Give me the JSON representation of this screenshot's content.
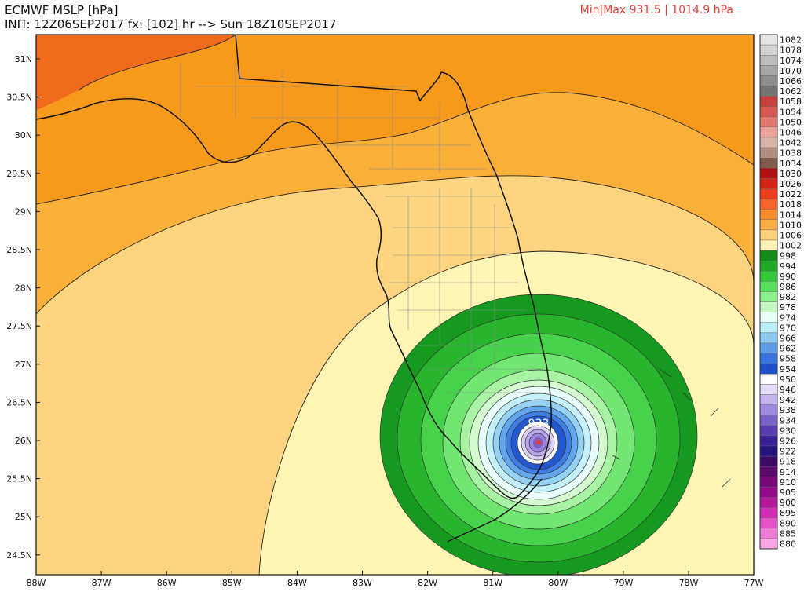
{
  "header": {
    "title": "ECMWF MSLP [hPa]",
    "init_line": "INIT: 12Z06SEP2017 fx: [102] hr --> Sun 18Z10SEP2017",
    "minmax": "Min|Max 931.5 | 1014.9 hPa",
    "center_label": "933"
  },
  "lat_labels": [
    "31N",
    "30.5N",
    "30N",
    "29.5N",
    "29N",
    "28.5N",
    "28N",
    "27.5N",
    "27N",
    "26.5N",
    "26N",
    "25.5N",
    "25N",
    "24.5N"
  ],
  "lon_labels": [
    "88W",
    "87W",
    "86W",
    "85W",
    "84W",
    "83W",
    "82W",
    "81W",
    "80W",
    "79W",
    "78W",
    "77W"
  ],
  "colorbar": [
    {
      "label": "1082",
      "color": "#e6e6e6"
    },
    {
      "label": "1078",
      "color": "#d2d2d2"
    },
    {
      "label": "1074",
      "color": "#bdbdbd"
    },
    {
      "label": "1070",
      "color": "#a6a6a6"
    },
    {
      "label": "1066",
      "color": "#8e8e8e"
    },
    {
      "label": "1062",
      "color": "#757575"
    },
    {
      "label": "1058",
      "color": "#c8403c"
    },
    {
      "label": "1054",
      "color": "#d85a55"
    },
    {
      "label": "1050",
      "color": "#e07870"
    },
    {
      "label": "1046",
      "color": "#eaa29b"
    },
    {
      "label": "1042",
      "color": "#d9b3a7"
    },
    {
      "label": "1038",
      "color": "#b08d7f"
    },
    {
      "label": "1034",
      "color": "#805a4b"
    },
    {
      "label": "1030",
      "color": "#b01010"
    },
    {
      "label": "1026",
      "color": "#d42418"
    },
    {
      "label": "1022",
      "color": "#f03c1e"
    },
    {
      "label": "1018",
      "color": "#f7642a"
    },
    {
      "label": "1014",
      "color": "#fa8c2a"
    },
    {
      "label": "1010",
      "color": "#fbae45"
    },
    {
      "label": "1006",
      "color": "#fdd27a"
    },
    {
      "label": "1002",
      "color": "#fff4b8"
    },
    {
      "label": "998",
      "color": "#128c1a"
    },
    {
      "label": "994",
      "color": "#1fab26"
    },
    {
      "label": "990",
      "color": "#34c83a"
    },
    {
      "label": "986",
      "color": "#58e05c"
    },
    {
      "label": "982",
      "color": "#8cf08c"
    },
    {
      "label": "978",
      "color": "#c6f9c2"
    },
    {
      "label": "974",
      "color": "#e6fff8"
    },
    {
      "label": "970",
      "color": "#bceef8"
    },
    {
      "label": "966",
      "color": "#8cc8f0"
    },
    {
      "label": "962",
      "color": "#5c9ce8"
    },
    {
      "label": "958",
      "color": "#3a74e0"
    },
    {
      "label": "954",
      "color": "#1e50c8"
    },
    {
      "label": "950",
      "color": "#ffffff"
    },
    {
      "label": "946",
      "color": "#e6dcf8"
    },
    {
      "label": "942",
      "color": "#c6b4f0"
    },
    {
      "label": "938",
      "color": "#9f8ae0"
    },
    {
      "label": "934",
      "color": "#7a62c8"
    },
    {
      "label": "930",
      "color": "#5c3cb0"
    },
    {
      "label": "926",
      "color": "#3a1e96"
    },
    {
      "label": "922",
      "color": "#24127e"
    },
    {
      "label": "918",
      "color": "#3c0a64"
    },
    {
      "label": "914",
      "color": "#5a0a6e"
    },
    {
      "label": "910",
      "color": "#780a78"
    },
    {
      "label": "905",
      "color": "#960a8a"
    },
    {
      "label": "900",
      "color": "#b4169e"
    },
    {
      "label": "895",
      "color": "#d02cb4"
    },
    {
      "label": "890",
      "color": "#e452c8"
    },
    {
      "label": "885",
      "color": "#f07ad8"
    },
    {
      "label": "880",
      "color": "#f8a6e6"
    }
  ],
  "fills": {
    "f1018": "#f06a1c",
    "f1014": "#f79a1c",
    "f1010": "#fbb03a",
    "f1006": "#fdd580",
    "f1002": "#fff5b5",
    "g998": "#159a1f",
    "g994": "#28b42c",
    "g990": "#46d24a",
    "g986": "#72e672",
    "g982": "#a8f2a4",
    "g978": "#d4fad0",
    "c974": "#eafffb",
    "c970": "#c4f0fa",
    "c966": "#96d2f4",
    "c962": "#64a6ec",
    "c958": "#3f7ee4",
    "c954": "#2458d0",
    "c950": "#ffffff",
    "p946": "#ddd2f6",
    "p942": "#bba8ec",
    "p938": "#9a82de",
    "p934": "#7d62c6",
    "center": "#e63c32"
  }
}
